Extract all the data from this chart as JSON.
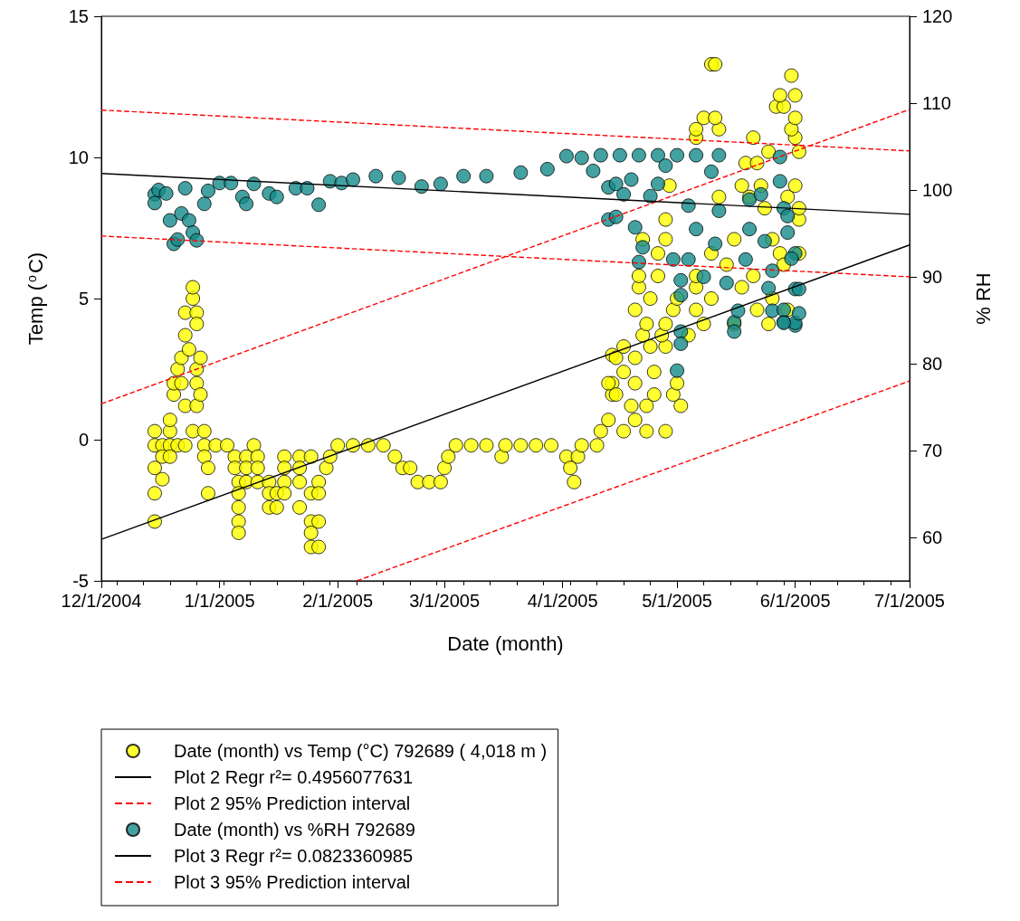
{
  "chart_data": {
    "type": "scatter",
    "xlabel": "Date (month)",
    "ylabel": "Temp ($^{o}$C)",
    "y2label": "% RH",
    "xlim": [
      "2004-12-01",
      "2005-07-01"
    ],
    "xticks": [
      {
        "value": "2004-12-01",
        "label": "12/1/2004"
      },
      {
        "value": "2005-01-01",
        "label": "1/1/2005"
      },
      {
        "value": "2005-02-01",
        "label": "2/1/2005"
      },
      {
        "value": "2005-03-01",
        "label": "3/1/2005"
      },
      {
        "value": "2005-04-01",
        "label": "4/1/2005"
      },
      {
        "value": "2005-05-01",
        "label": "5/1/2005"
      },
      {
        "value": "2005-06-01",
        "label": "6/1/2005"
      },
      {
        "value": "2005-07-01",
        "label": "7/1/2005"
      },
      {
        "value": "2004-12-05",
        "label": null
      },
      {
        "value": "2004-12-12",
        "label": null
      },
      {
        "value": "2004-12-19",
        "label": null
      },
      {
        "value": "2004-12-26",
        "label": null
      },
      {
        "value": "2005-01-02",
        "label": null
      },
      {
        "value": "2005-01-09",
        "label": null
      },
      {
        "value": "2005-01-16",
        "label": null
      },
      {
        "value": "2005-01-23",
        "label": null
      },
      {
        "value": "2005-01-30",
        "label": null
      },
      {
        "value": "2005-02-06",
        "label": null
      },
      {
        "value": "2005-02-13",
        "label": null
      },
      {
        "value": "2005-02-20",
        "label": null
      },
      {
        "value": "2005-02-27",
        "label": null
      },
      {
        "value": "2005-03-06",
        "label": null
      },
      {
        "value": "2005-03-13",
        "label": null
      },
      {
        "value": "2005-03-20",
        "label": null
      },
      {
        "value": "2005-03-27",
        "label": null
      },
      {
        "value": "2005-04-03",
        "label": null
      },
      {
        "value": "2005-04-10",
        "label": null
      },
      {
        "value": "2005-04-17",
        "label": null
      },
      {
        "value": "2005-04-24",
        "label": null
      },
      {
        "value": "2005-05-08",
        "label": null
      },
      {
        "value": "2005-05-15",
        "label": null
      },
      {
        "value": "2005-05-22",
        "label": null
      },
      {
        "value": "2005-05-29",
        "label": null
      },
      {
        "value": "2005-06-05",
        "label": null
      },
      {
        "value": "2005-06-12",
        "label": null
      },
      {
        "value": "2005-06-19",
        "label": null
      },
      {
        "value": "2005-06-26",
        "label": null
      }
    ],
    "ylim": [
      -5,
      15
    ],
    "yticks": [
      -5,
      0,
      5,
      10,
      15
    ],
    "y2lim": [
      55,
      120
    ],
    "y2ticks": [
      60,
      70,
      80,
      90,
      100,
      110,
      120
    ],
    "grid": false,
    "legend": "bottom",
    "series": [
      {
        "name": "Date (month) vs Temp (°C) 792689 ( 4,018 m )",
        "marker": "circle",
        "color": "#ffff00",
        "x": [
          "2004-12-15",
          "2004-12-15",
          "2004-12-15",
          "2004-12-15",
          "2004-12-15",
          "2004-12-17",
          "2004-12-17",
          "2004-12-17",
          "2004-12-19",
          "2004-12-19",
          "2004-12-19",
          "2004-12-19",
          "2004-12-20",
          "2004-12-20",
          "2004-12-21",
          "2004-12-21",
          "2004-12-22",
          "2004-12-22",
          "2004-12-23",
          "2004-12-23",
          "2004-12-23",
          "2004-12-23",
          "2004-12-24",
          "2004-12-25",
          "2004-12-25",
          "2004-12-25",
          "2004-12-26",
          "2004-12-26",
          "2004-12-26",
          "2004-12-26",
          "2004-12-26",
          "2004-12-27",
          "2004-12-27",
          "2004-12-28",
          "2004-12-28",
          "2004-12-28",
          "2004-12-29",
          "2004-12-29",
          "2004-12-31",
          "2005-01-03",
          "2005-01-05",
          "2005-01-05",
          "2005-01-06",
          "2005-01-06",
          "2005-01-06",
          "2005-01-06",
          "2005-01-06",
          "2005-01-08",
          "2005-01-08",
          "2005-01-08",
          "2005-01-10",
          "2005-01-11",
          "2005-01-11",
          "2005-01-11",
          "2005-01-14",
          "2005-01-14",
          "2005-01-14",
          "2005-01-16",
          "2005-01-16",
          "2005-01-18",
          "2005-01-18",
          "2005-01-18",
          "2005-01-18",
          "2005-01-22",
          "2005-01-22",
          "2005-01-22",
          "2005-01-22",
          "2005-01-25",
          "2005-01-25",
          "2005-01-25",
          "2005-01-25",
          "2005-01-25",
          "2005-01-27",
          "2005-01-27",
          "2005-01-27",
          "2005-01-27",
          "2005-01-29",
          "2005-01-30",
          "2005-02-01",
          "2005-02-05",
          "2005-02-09",
          "2005-02-13",
          "2005-02-16",
          "2005-02-18",
          "2005-02-20",
          "2005-02-22",
          "2005-02-25",
          "2005-02-28",
          "2005-03-01",
          "2005-03-02",
          "2005-03-04",
          "2005-03-08",
          "2005-03-12",
          "2005-03-16",
          "2005-03-17",
          "2005-03-21",
          "2005-03-25",
          "2005-03-29",
          "2005-04-02",
          "2005-04-03",
          "2005-04-04",
          "2005-04-05",
          "2005-04-06",
          "2005-04-10",
          "2005-04-11",
          "2005-04-13",
          "2005-04-14",
          "2005-04-14",
          "2005-04-14",
          "2005-04-17",
          "2005-04-20",
          "2005-04-23",
          "2005-04-28",
          "2005-04-19",
          "2005-04-23",
          "2005-05-02",
          "2005-04-15",
          "2005-04-25",
          "2005-04-30",
          "2005-04-13",
          "2005-04-20",
          "2005-05-01",
          "2005-04-17",
          "2005-04-25",
          "2005-04-15",
          "2005-04-20",
          "2005-04-17",
          "2005-04-24",
          "2005-04-28",
          "2005-04-22",
          "2005-04-27",
          "2005-05-04",
          "2005-04-23",
          "2005-04-28",
          "2005-05-08",
          "2005-05-16",
          "2005-05-25",
          "2005-04-20",
          "2005-04-30",
          "2005-05-06",
          "2005-05-22",
          "2005-05-30",
          "2005-04-24",
          "2005-05-01",
          "2005-05-10",
          "2005-05-26",
          "2005-04-21",
          "2005-05-06",
          "2005-05-18",
          "2005-04-21",
          "2005-04-26",
          "2005-05-06",
          "2005-05-21",
          "2005-04-26",
          "2005-05-10",
          "2005-05-28",
          "2005-06-02",
          "2005-04-22",
          "2005-04-28",
          "2005-05-16",
          "2005-05-26",
          "2005-05-14",
          "2005-05-29",
          "2005-04-28",
          "2005-06-02",
          "2005-05-24",
          "2005-06-02",
          "2005-05-12",
          "2005-05-20",
          "2005-05-30",
          "2005-04-29",
          "2005-05-18",
          "2005-05-23",
          "2005-06-01",
          "2005-05-19",
          "2005-05-22",
          "2005-05-25",
          "2005-06-02",
          "2005-05-06",
          "2005-05-21",
          "2005-06-01",
          "2005-05-06",
          "2005-05-12",
          "2005-05-31",
          "2005-05-08",
          "2005-05-11",
          "2005-06-01",
          "2005-05-27",
          "2005-05-29",
          "2005-05-28",
          "2005-06-01",
          "2005-05-31",
          "2005-05-10",
          "2005-05-11"
        ],
        "values": [
          -2.9,
          -0.2,
          -1.0,
          -1.9,
          0.3,
          -0.2,
          -0.6,
          -1.4,
          0.3,
          -0.2,
          -0.6,
          0.7,
          1.6,
          2.0,
          2.5,
          -0.2,
          2.0,
          2.9,
          3.7,
          4.5,
          1.2,
          -0.2,
          3.2,
          5.0,
          5.4,
          0.3,
          4.5,
          4.1,
          2.0,
          2.5,
          1.2,
          1.6,
          2.9,
          -0.2,
          -0.6,
          0.3,
          -1.0,
          -1.9,
          -0.2,
          -0.2,
          -0.6,
          -1.0,
          -1.5,
          -1.9,
          -2.4,
          -2.9,
          -3.3,
          -0.6,
          -1.0,
          -1.5,
          -0.2,
          -0.6,
          -1.0,
          -1.5,
          -1.5,
          -1.9,
          -2.4,
          -1.9,
          -2.4,
          -0.6,
          -1.0,
          -1.5,
          -1.9,
          -0.6,
          -1.0,
          -1.5,
          -2.4,
          -0.6,
          -1.9,
          -2.9,
          -3.3,
          -3.8,
          -1.5,
          -1.9,
          -2.9,
          -3.8,
          -1.0,
          -0.6,
          -0.2,
          -0.2,
          -0.2,
          -0.2,
          -0.6,
          -1.0,
          -1.0,
          -1.5,
          -1.5,
          -1.5,
          -1.0,
          -0.6,
          -0.2,
          -0.2,
          -0.2,
          -0.6,
          -0.2,
          -0.2,
          -0.2,
          -0.2,
          -0.6,
          -1.0,
          -1.5,
          -0.6,
          -0.2,
          -0.2,
          0.3,
          0.7,
          1.6,
          2.0,
          3.0,
          0.3,
          0.7,
          0.3,
          0.3,
          1.2,
          1.2,
          1.2,
          1.6,
          1.6,
          1.6,
          2.0,
          2.0,
          2.0,
          2.4,
          2.4,
          2.9,
          2.9,
          3.3,
          3.3,
          3.3,
          3.7,
          3.7,
          3.7,
          4.1,
          4.1,
          4.1,
          4.1,
          4.1,
          4.6,
          4.6,
          4.6,
          4.6,
          4.6,
          5.0,
          5.0,
          5.0,
          5.0,
          5.4,
          5.4,
          5.4,
          5.8,
          5.8,
          5.8,
          5.8,
          6.6,
          6.6,
          6.6,
          6.6,
          7.1,
          7.1,
          7.1,
          7.1,
          6.2,
          6.2,
          7.8,
          7.8,
          8.2,
          8.2,
          8.6,
          8.6,
          8.6,
          9.0,
          9.0,
          9.0,
          9.0,
          9.8,
          9.8,
          10.2,
          10.2,
          10.7,
          10.7,
          10.7,
          11.0,
          11.0,
          11.0,
          11.4,
          11.4,
          11.4,
          11.8,
          11.8,
          12.2,
          12.2,
          12.9,
          13.3,
          13.3
        ]
      },
      {
        "name": "Plot 2 Regr r²= 0.4956077631",
        "type": "line",
        "marker": "none",
        "color": "#000000",
        "x": [
          "2004-12-01",
          "2005-07-01"
        ],
        "values": [
          -3.53,
          6.9
        ]
      },
      {
        "name": "Plot 2 95% Prediction interval",
        "type": "line",
        "marker": "none",
        "color": "#ff0000",
        "line_style": "dashed",
        "x": [
          "2004-12-01",
          "2005-07-01"
        ],
        "values": [
          1.27,
          11.7
        ]
      },
      {
        "type": "line",
        "marker": "none",
        "color": "#ff0000",
        "line_style": "dashed",
        "x": [
          "2005-02-06",
          "2005-07-01"
        ],
        "values": [
          -5,
          2.08
        ]
      },
      {
        "name": "Date (month) vs %RH 792689",
        "marker": "circle",
        "color": "#14898a",
        "axis": "y2",
        "x": [
          "2004-12-15",
          "2004-12-15",
          "2004-12-16",
          "2004-12-18",
          "2004-12-19",
          "2004-12-20",
          "2004-12-21",
          "2004-12-22",
          "2004-12-23",
          "2004-12-24",
          "2004-12-25",
          "2004-12-26",
          "2004-12-28",
          "2004-12-29",
          "2005-01-01",
          "2005-01-04",
          "2005-01-07",
          "2005-01-08",
          "2005-01-10",
          "2005-01-14",
          "2005-01-16",
          "2005-01-21",
          "2005-01-24",
          "2005-01-27",
          "2005-01-30",
          "2005-02-02",
          "2005-02-05",
          "2005-02-11",
          "2005-02-17",
          "2005-02-23",
          "2005-02-28",
          "2005-03-06",
          "2005-03-12",
          "2005-03-21",
          "2005-03-28",
          "2005-04-02",
          "2005-04-06",
          "2005-04-09",
          "2005-04-11",
          "2005-04-13",
          "2005-04-13",
          "2005-04-16",
          "2005-04-21",
          "2005-04-26",
          "2005-05-01",
          "2005-05-06",
          "2005-05-12",
          "2005-04-15",
          "2005-04-15",
          "2005-04-17",
          "2005-04-19",
          "2005-04-24",
          "2005-04-26",
          "2005-04-20",
          "2005-04-22",
          "2005-04-21",
          "2005-04-28",
          "2005-04-30",
          "2005-05-02",
          "2005-05-02",
          "2005-05-02",
          "2005-05-02",
          "2005-05-01",
          "2005-05-04",
          "2005-05-04",
          "2005-05-06",
          "2005-05-08",
          "2005-05-10",
          "2005-05-12",
          "2005-05-11",
          "2005-05-14",
          "2005-05-16",
          "2005-05-16",
          "2005-05-17",
          "2005-05-20",
          "2005-05-20",
          "2005-05-19",
          "2005-05-23",
          "2005-05-24",
          "2005-05-26",
          "2005-05-26",
          "2005-05-28",
          "2005-05-28",
          "2005-05-29",
          "2005-05-29",
          "2005-05-29",
          "2005-05-30",
          "2005-05-30",
          "2005-06-01",
          "2005-06-01",
          "2005-06-01",
          "2005-06-01",
          "2005-06-02",
          "2005-06-02",
          "2005-05-31",
          "2005-05-25",
          "2005-05-29"
        ],
        "values": [
          99.5,
          98.5,
          100.0,
          99.6,
          96.5,
          93.8,
          94.3,
          97.3,
          100.2,
          96.5,
          95.1,
          94.2,
          98.4,
          99.9,
          100.8,
          100.8,
          99.2,
          98.4,
          100.7,
          99.6,
          99.2,
          100.2,
          100.2,
          98.3,
          101.0,
          100.8,
          101.2,
          101.6,
          101.4,
          100.4,
          100.7,
          101.6,
          101.6,
          102.0,
          102.4,
          103.9,
          103.7,
          102.2,
          104.0,
          100.3,
          96.6,
          104.0,
          104.0,
          104.0,
          104.0,
          104.0,
          104.0,
          100.7,
          96.9,
          99.5,
          101.2,
          99.3,
          100.7,
          95.7,
          93.4,
          91.7,
          102.8,
          92.0,
          89.6,
          87.9,
          83.7,
          82.3,
          79.2,
          98.2,
          92.0,
          95.5,
          90.0,
          102.1,
          97.6,
          93.8,
          89.3,
          84.8,
          83.7,
          86.1,
          98.9,
          95.5,
          92.0,
          99.5,
          94.1,
          90.7,
          86.1,
          103.8,
          101.0,
          97.9,
          84.8,
          86.2,
          95.1,
          97.0,
          92.7,
          84.4,
          88.6,
          84.7,
          88.6,
          85.8,
          92.1,
          88.7,
          84.7
        ]
      },
      {
        "name": "Plot 3 Regr r²= 0.0823360985",
        "type": "line",
        "marker": "none",
        "color": "#000000",
        "axis": "y2",
        "x": [
          "2004-12-01",
          "2005-07-01"
        ],
        "values": [
          101.9,
          97.2
        ]
      },
      {
        "name": "Plot 3 95% Prediction interval",
        "type": "line",
        "marker": "none",
        "color": "#ff0000",
        "line_style": "dashed",
        "axis": "y2",
        "x": [
          "2004-12-01",
          "2005-07-01"
        ],
        "values": [
          109.2,
          104.5
        ]
      },
      {
        "type": "line",
        "marker": "none",
        "color": "#ff0000",
        "line_style": "dashed",
        "axis": "y2",
        "x": [
          "2004-12-01",
          "2005-07-01"
        ],
        "values": [
          94.7,
          90.0
        ]
      }
    ]
  }
}
